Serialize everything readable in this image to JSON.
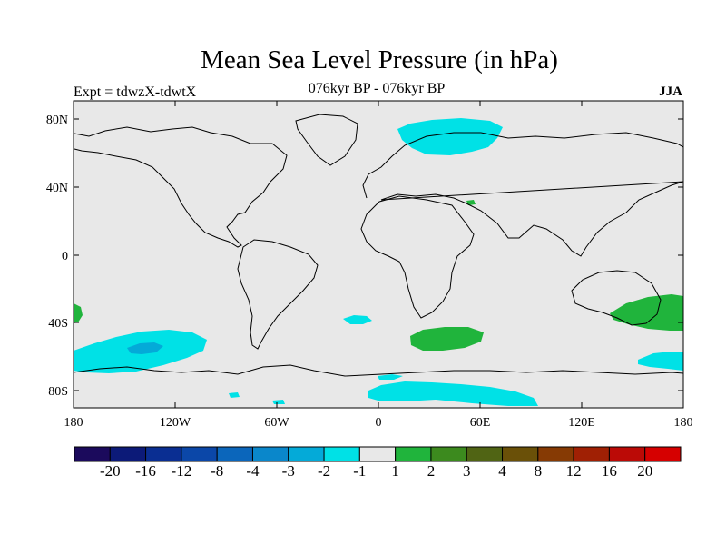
{
  "title": "Mean Sea Level Pressure (in hPa)",
  "subtitle_left": "Expt = tdwzX-tdwtX",
  "subtitle_center": "076kyr BP - 076kyr BP",
  "subtitle_right": "JJA",
  "lat_ticks": [
    "80N",
    "40N",
    "0",
    "40S",
    "80S"
  ],
  "lon_ticks": [
    "180",
    "120W",
    "60W",
    "0",
    "60E",
    "120E",
    "180"
  ],
  "colorbar": {
    "labels": [
      "-20",
      "-16",
      "-12",
      "-8",
      "-4",
      "-3",
      "-2",
      "-1",
      "1",
      "2",
      "3",
      "4",
      "8",
      "12",
      "16",
      "20"
    ],
    "colors": [
      "#1b0a5c",
      "#0c1a78",
      "#0a2e92",
      "#0b47a8",
      "#0b66bb",
      "#0a87cb",
      "#04aad8",
      "#00e1e6",
      "#e8e8e8",
      "#20b43c",
      "#3c8a1e",
      "#506414",
      "#6a5008",
      "#863a04",
      "#a02004",
      "#bb0a06",
      "#d60000"
    ]
  },
  "colors": {
    "ocean_background": "#e8e8e8",
    "negative_anomaly": "#00e1e6",
    "positive_anomaly": "#20b43c"
  }
}
